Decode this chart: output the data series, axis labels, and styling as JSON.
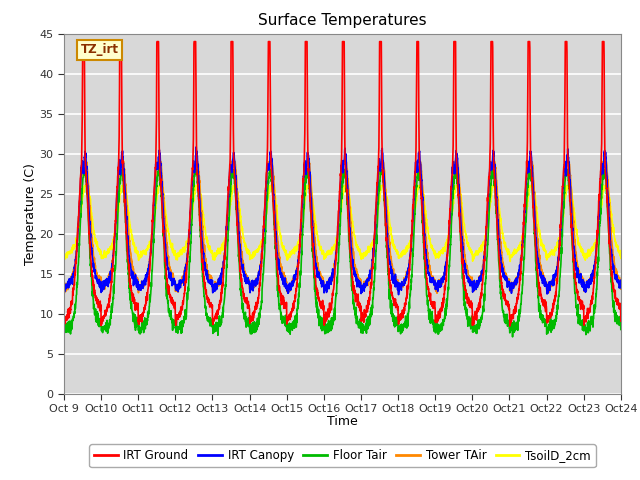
{
  "title": "Surface Temperatures",
  "xlabel": "Time",
  "ylabel": "Temperature (C)",
  "xlim": [
    0,
    15
  ],
  "ylim": [
    0,
    45
  ],
  "yticks": [
    0,
    5,
    10,
    15,
    20,
    25,
    30,
    35,
    40,
    45
  ],
  "xtick_labels": [
    "Oct 9",
    "Oct 10",
    "Oct 11",
    "Oct 12",
    "Oct 13",
    "Oct 14",
    "Oct 15",
    "Oct 16",
    "Oct 17",
    "Oct 18",
    "Oct 19",
    "Oct 20",
    "Oct 21",
    "Oct 22",
    "Oct 23",
    "Oct 24"
  ],
  "series_colors": {
    "IRT Ground": "#FF0000",
    "IRT Canopy": "#0000FF",
    "Floor Tair": "#00BB00",
    "Tower TAir": "#FF8800",
    "TsoilD_2cm": "#FFFF00"
  },
  "annotation_text": "TZ_irt",
  "bg_color": "#D8D8D8",
  "grid_color": "#FFFFFF",
  "lw": 1.2
}
